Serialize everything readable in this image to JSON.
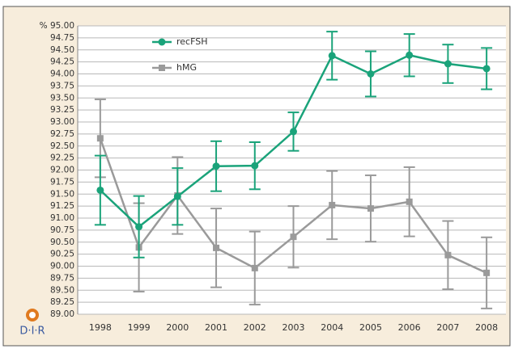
{
  "chart_data": {
    "type": "line",
    "logo": "D·I·R",
    "categories": [
      "1998",
      "1999",
      "2000",
      "2001",
      "2002",
      "2003",
      "2004",
      "2005",
      "2006",
      "2007",
      "2008"
    ],
    "series": [
      {
        "name": "recFSH",
        "color": "#1aa37a",
        "marker": "circle",
        "values": [
          91.58,
          90.82,
          91.45,
          92.08,
          92.09,
          92.8,
          94.38,
          94.0,
          94.39,
          94.21,
          94.11
        ],
        "errors": [
          0.72,
          0.64,
          0.59,
          0.52,
          0.49,
          0.4,
          0.5,
          0.47,
          0.44,
          0.4,
          0.43
        ]
      },
      {
        "name": "hMG",
        "color": "#9a9a9a",
        "marker": "square",
        "values": [
          92.66,
          90.39,
          91.47,
          90.38,
          89.96,
          90.61,
          91.27,
          91.2,
          91.34,
          90.23,
          89.86
        ],
        "errors": [
          0.81,
          0.92,
          0.8,
          0.82,
          0.76,
          0.64,
          0.71,
          0.69,
          0.72,
          0.71,
          0.74
        ]
      }
    ],
    "ylim": [
      89,
      95
    ],
    "yticks": [
      {
        "value": 89,
        "label": "89.00"
      },
      {
        "value": 89.25,
        "label": "89.25"
      },
      {
        "value": 89.5,
        "label": "89.50"
      },
      {
        "value": 89.75,
        "label": "89.75"
      },
      {
        "value": 90,
        "label": "90.00"
      },
      {
        "value": 90.25,
        "label": "90.25"
      },
      {
        "value": 90.5,
        "label": "90.50"
      },
      {
        "value": 90.75,
        "label": "90.75"
      },
      {
        "value": 91,
        "label": "91.00"
      },
      {
        "value": 91.25,
        "label": "91.25"
      },
      {
        "value": 91.5,
        "label": "91.50"
      },
      {
        "value": 91.75,
        "label": "91.75"
      },
      {
        "value": 92,
        "label": "92.00"
      },
      {
        "value": 92.25,
        "label": "92.25"
      },
      {
        "value": 92.5,
        "label": "92.50"
      },
      {
        "value": 92.75,
        "label": "92.75"
      },
      {
        "value": 93,
        "label": "93.00"
      },
      {
        "value": 93.25,
        "label": "93.25"
      },
      {
        "value": 93.5,
        "label": "93.50"
      },
      {
        "value": 93.75,
        "label": "93.75"
      },
      {
        "value": 94,
        "label": "94.00"
      },
      {
        "value": 94.25,
        "label": "94.25"
      },
      {
        "value": 94.5,
        "label": "94.50"
      },
      {
        "value": 94.75,
        "label": "94.75"
      },
      {
        "value": 95,
        "label": "% 95.00"
      }
    ],
    "grid": true
  }
}
